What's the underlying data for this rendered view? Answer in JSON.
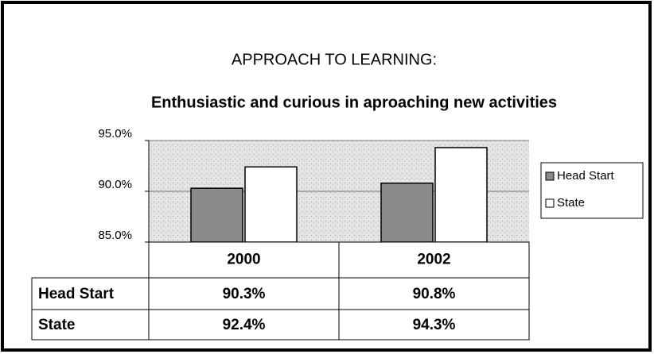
{
  "chart_data": {
    "type": "bar",
    "title": "APPROACH TO LEARNING:",
    "subtitle": "Enthusiastic and curious in aproaching new activities",
    "categories": [
      "2000",
      "2002"
    ],
    "series": [
      {
        "name": "Head Start",
        "color": "#8a8a8a",
        "values": [
          90.3,
          90.8
        ],
        "value_labels": [
          "90.3%",
          "90.8%"
        ]
      },
      {
        "name": "State",
        "color": "#ffffff",
        "values": [
          92.4,
          94.3
        ],
        "value_labels": [
          "92.4%",
          "94.3%"
        ]
      }
    ],
    "ylim": [
      85,
      95
    ],
    "yticks": [
      {
        "value": 85,
        "label": "85.0%"
      },
      {
        "value": 90,
        "label": "90.0%"
      },
      {
        "value": 95,
        "label": "95.0%"
      }
    ],
    "grid": true,
    "legend": "right"
  }
}
